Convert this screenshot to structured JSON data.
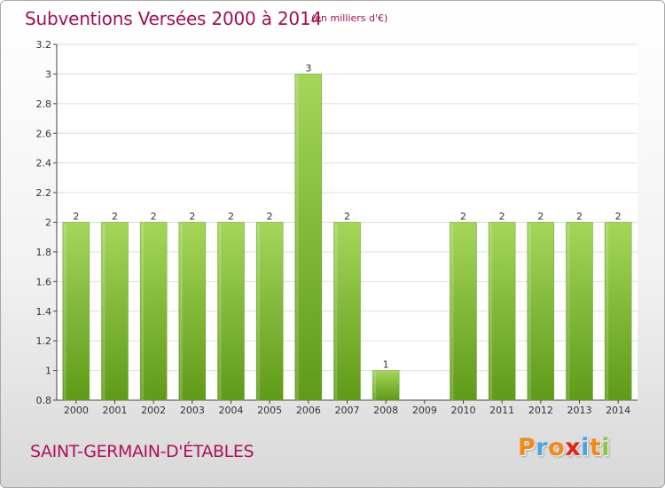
{
  "header": {
    "title": "Subventions Versées 2000 à 2014",
    "subtitle": "(en milliers d'€)"
  },
  "footer": {
    "commune": "SAINT-GERMAIN-D'ÉTABLES",
    "logo_letters": [
      "P",
      "r",
      "o",
      "x",
      "i",
      "t",
      "i"
    ],
    "logo_colors": [
      "#f08a1c",
      "#4aa3df",
      "#f08a1c",
      "#e2231a",
      "#4aa3df",
      "#f08a1c",
      "#8cc63f"
    ]
  },
  "colors": {
    "bar_light": "#a4d65a",
    "bar_dark": "#5f9a18",
    "grid": "#dddddd",
    "axis": "#444444",
    "text": "#333333"
  },
  "chart_data": {
    "type": "bar",
    "categories": [
      "2000",
      "2001",
      "2002",
      "2003",
      "2004",
      "2005",
      "2006",
      "2007",
      "2008",
      "2009",
      "2010",
      "2011",
      "2012",
      "2013",
      "2014"
    ],
    "values": [
      2,
      2,
      2,
      2,
      2,
      2,
      3,
      2,
      1,
      null,
      2,
      2,
      2,
      2,
      2
    ],
    "value_labels": [
      "2",
      "2",
      "2",
      "2",
      "2",
      "2",
      "3",
      "2",
      "1",
      "",
      "2",
      "2",
      "2",
      "2",
      "2"
    ],
    "ylim": [
      0.8,
      3.2
    ],
    "yticks": [
      0.8,
      1,
      1.2,
      1.4,
      1.6,
      1.8,
      2,
      2.2,
      2.4,
      2.6,
      2.8,
      3,
      3.2
    ],
    "ytick_labels": [
      "0.8",
      "1",
      "1.2",
      "1.4",
      "1.6",
      "1.8",
      "2",
      "2.2",
      "2.4",
      "2.6",
      "2.8",
      "3",
      "3.2"
    ],
    "grid": "horizontal",
    "legend": "none"
  }
}
